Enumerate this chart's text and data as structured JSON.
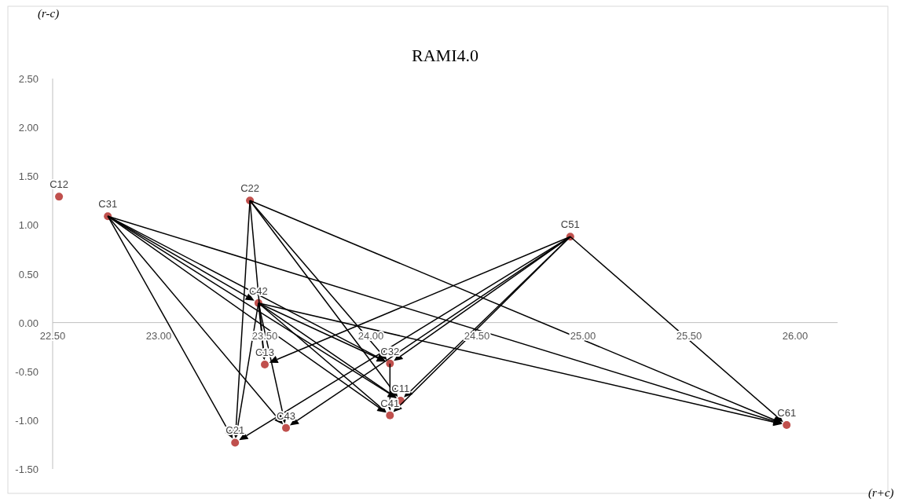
{
  "chart_data": {
    "type": "scatter",
    "title": "RAMI4.0",
    "xlabel": "(r+c)",
    "ylabel": "(r-c)",
    "x": [
      22.53,
      22.76,
      23.43,
      24.94,
      23.47,
      23.5,
      24.09,
      24.14,
      24.09,
      23.6,
      23.36,
      25.96
    ],
    "values": [
      1.29,
      1.09,
      1.25,
      0.88,
      0.2,
      -0.43,
      -0.42,
      -0.8,
      -0.95,
      -1.08,
      -1.23,
      -1.05
    ],
    "value_labels": [
      "C12",
      "C31",
      "C22",
      "C51",
      "C42",
      "C13",
      "C32",
      "C11",
      "C41",
      "C43",
      "C21",
      "C61"
    ],
    "color": "#c0504d",
    "marker": "circle",
    "grid": false,
    "xlim": [
      22.5,
      26.2
    ],
    "xticks": [
      {
        "value": 22.5,
        "label": "22.50"
      },
      {
        "value": 23,
        "label": "23.00"
      },
      {
        "value": 23.5,
        "label": "23.50"
      },
      {
        "value": 24,
        "label": "24.00"
      },
      {
        "value": 24.5,
        "label": "24.50"
      },
      {
        "value": 25,
        "label": "25.00"
      },
      {
        "value": 25.5,
        "label": "25.50"
      },
      {
        "value": 26,
        "label": "26.00"
      }
    ],
    "ylim": [
      -1.5,
      2.5
    ],
    "yticks": [
      {
        "value": -1.5,
        "label": "-1.50"
      },
      {
        "value": -1,
        "label": "-1.00"
      },
      {
        "value": -0.5,
        "label": "-0.50"
      },
      {
        "value": 0,
        "label": "0.00"
      },
      {
        "value": 0.5,
        "label": "0.50"
      },
      {
        "value": 1,
        "label": "1.00"
      },
      {
        "value": 1.5,
        "label": "1.50"
      },
      {
        "value": 2,
        "label": "2.00"
      },
      {
        "value": 2.5,
        "label": "2.50"
      }
    ]
  }
}
